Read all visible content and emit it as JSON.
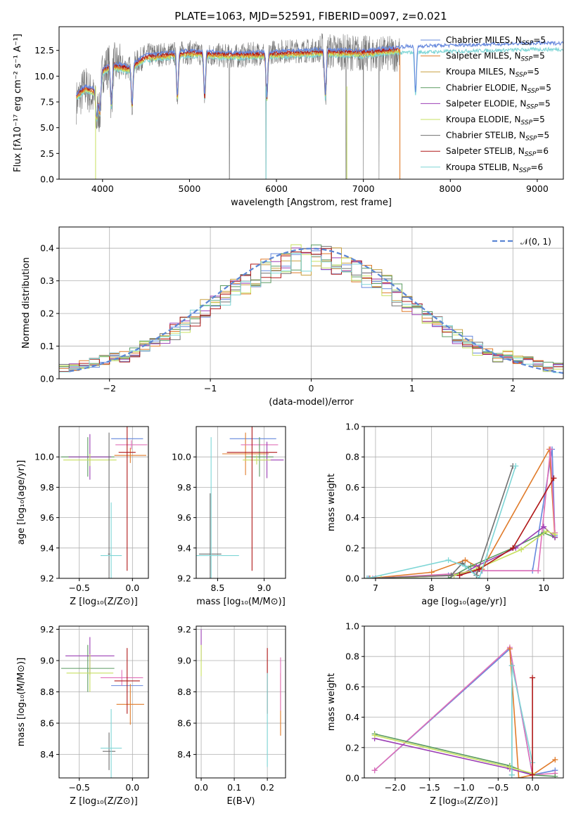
{
  "title": "PLATE=1063, MJD=52591, FIBERID=0097, z=0.021",
  "colors": [
    "#6688dd",
    "#e07b2a",
    "#c8a040",
    "#5a9a60",
    "#9b3fb5",
    "#c7e060",
    "#707070",
    "#b01818",
    "#7ed6d6",
    "#e070b8"
  ],
  "legend": [
    {
      "name": "Chabrier MILES, N",
      "sub": "SSP",
      "eq": "=5",
      "color": "#6688dd"
    },
    {
      "name": "Salpeter MILES, N",
      "sub": "SSP",
      "eq": "=5",
      "color": "#e07b2a"
    },
    {
      "name": "Kroupa MILES, N",
      "sub": "SSP",
      "eq": "=5",
      "color": "#c8a040"
    },
    {
      "name": "Chabrier ELODIE, N",
      "sub": "SSP",
      "eq": "=5",
      "color": "#5a9a60"
    },
    {
      "name": "Salpeter ELODIE, N",
      "sub": "SSP",
      "eq": "=5",
      "color": "#9b3fb5"
    },
    {
      "name": "Kroupa ELODIE, N",
      "sub": "SSP",
      "eq": "=5",
      "color": "#c7e060"
    },
    {
      "name": "Chabrier STELIB, N",
      "sub": "SSP",
      "eq": "=5",
      "color": "#707070"
    },
    {
      "name": "Salpeter STELIB, N",
      "sub": "SSP",
      "eq": "=6",
      "color": "#b01818"
    },
    {
      "name": "Kroupa STELIB, N",
      "sub": "SSP",
      "eq": "=6",
      "color": "#7ed6d6"
    }
  ],
  "chart_data": [
    {
      "id": "spectrum",
      "type": "line",
      "xlabel": "wavelength [Angstrom, rest frame]",
      "ylabel": "Flux [fλ10⁻¹⁷ erg cm⁻² s⁻¹ A⁻¹]",
      "xlim": [
        3500,
        9300
      ],
      "ylim": [
        0,
        14.8
      ],
      "xticks": [
        4000,
        5000,
        6000,
        7000,
        8000,
        9000
      ],
      "yticks": [
        0.0,
        2.5,
        5.0,
        7.5,
        10.0,
        12.5
      ],
      "ytick_labels": [
        "0.0",
        "2.5",
        "5.0",
        "7.5",
        "10.0",
        "12.5"
      ],
      "legend_position": "right",
      "observed_anchor_x": [
        3700,
        3800,
        3900,
        4000,
        4100,
        4300,
        4500,
        5000,
        5500,
        6000,
        6500,
        7000,
        7200,
        7400
      ],
      "observed_anchor_y": [
        7.5,
        9.0,
        7.8,
        10.5,
        11.2,
        10.8,
        12.0,
        12.3,
        11.9,
        12.4,
        12.5,
        12.2,
        12.1,
        12.2
      ],
      "model_anchor_x": [
        3700,
        3800,
        3900,
        4000,
        4100,
        4300,
        4500,
        5000,
        5500,
        6000,
        6500,
        7000,
        7500,
        8000,
        8500,
        9000
      ],
      "model_anchor_y": [
        8.0,
        8.8,
        8.5,
        10.5,
        11.0,
        10.7,
        11.8,
        12.2,
        12.0,
        12.1,
        12.3,
        12.2,
        12.6,
        12.7,
        12.8,
        12.9
      ],
      "absorption_lines": [
        3933,
        3968,
        4102,
        4340,
        4861,
        5175,
        5890,
        6563,
        7600
      ],
      "observed_dropouts": [
        5460,
        5880,
        6800,
        7000,
        7180
      ],
      "grid": false
    },
    {
      "id": "residuals",
      "type": "histogram",
      "xlabel": "(data-model)/error",
      "ylabel": "Normed distribution",
      "xlim": [
        -2.5,
        2.5
      ],
      "ylim": [
        0,
        0.465
      ],
      "xticks": [
        -2,
        -1,
        0,
        1,
        2
      ],
      "xtick_labels": [
        "−2",
        "−1",
        "0",
        "1",
        "2"
      ],
      "yticks": [
        0.0,
        0.1,
        0.2,
        0.3,
        0.4
      ],
      "ytick_labels": [
        "0.0",
        "0.1",
        "0.2",
        "0.3",
        "0.4"
      ],
      "bin_width": 0.1,
      "normal_legend": "𝒩(0, 1)",
      "legend_position": "top-right",
      "grid": true
    },
    {
      "id": "age-vs-Z",
      "type": "scatter-errorbar",
      "xlabel": "Z [log₁₀(Z/Z⊙)]",
      "ylabel": "age  [log₁₀(age/yr)]",
      "xlim": [
        -0.69,
        0.15
      ],
      "ylim": [
        9.2,
        10.2
      ],
      "xticks": [
        -0.5,
        0.0
      ],
      "xtick_labels": [
        "−0.5",
        "0.0"
      ],
      "yticks": [
        9.2,
        9.4,
        9.6,
        9.8,
        10.0
      ],
      "ytick_labels": [
        "9.2",
        "9.4",
        "9.6",
        "9.8",
        "10.0"
      ],
      "points": [
        {
          "x": -0.05,
          "y": 10.12,
          "xerr": 0.15,
          "yerr": 0.0,
          "c": 0
        },
        {
          "x": -0.02,
          "y": 10.01,
          "xerr": 0.15,
          "yerr": 0.05,
          "c": 1
        },
        {
          "x": -0.01,
          "y": 10.08,
          "xerr": 0.15,
          "yerr": 0.03,
          "c": 9
        },
        {
          "x": -0.42,
          "y": 10.0,
          "xerr": 0.25,
          "yerr": 0.13,
          "c": 3
        },
        {
          "x": -0.4,
          "y": 10.0,
          "xerr": 0.2,
          "yerr": 0.15,
          "c": 4
        },
        {
          "x": -0.4,
          "y": 9.98,
          "xerr": 0.25,
          "yerr": 0.04,
          "c": 5
        },
        {
          "x": -0.22,
          "y": 9.36,
          "xerr": 0.01,
          "yerr": 0.8,
          "c": 6
        },
        {
          "x": -0.05,
          "y": 10.03,
          "xerr": 0.08,
          "yerr": 0.78,
          "c": 7
        },
        {
          "x": -0.2,
          "y": 9.35,
          "xerr": 0.1,
          "yerr": 0.35,
          "c": 8
        }
      ],
      "grid": true
    },
    {
      "id": "age-vs-mass",
      "type": "scatter-errorbar",
      "xlabel": "mass [log₁₀(M/M⊙)]",
      "ylabel": "",
      "xlim": [
        8.27,
        9.23
      ],
      "ylim": [
        9.2,
        10.2
      ],
      "xticks": [
        8.5,
        9.0
      ],
      "xtick_labels": [
        "8.5",
        "9.0"
      ],
      "yticks": [
        9.2,
        9.4,
        9.6,
        9.8,
        10.0
      ],
      "ytick_labels": [
        "9.2",
        "9.4",
        "9.6",
        "9.8",
        "10.0"
      ],
      "points": [
        {
          "x": 8.88,
          "y": 10.12,
          "xerr": 0.25,
          "yerr": 0.0,
          "c": 0
        },
        {
          "x": 8.8,
          "y": 10.02,
          "xerr": 0.25,
          "yerr": 0.14,
          "c": 1
        },
        {
          "x": 8.95,
          "y": 10.08,
          "xerr": 0.2,
          "yerr": 0.03,
          "c": 9
        },
        {
          "x": 8.95,
          "y": 10.0,
          "xerr": 0.15,
          "yerr": 0.13,
          "c": 3
        },
        {
          "x": 9.03,
          "y": 9.98,
          "xerr": 0.18,
          "yerr": 0.12,
          "c": 4
        },
        {
          "x": 8.92,
          "y": 9.98,
          "xerr": 0.15,
          "yerr": 0.03,
          "c": 5
        },
        {
          "x": 8.42,
          "y": 9.36,
          "xerr": 0.12,
          "yerr": 0.4,
          "c": 6
        },
        {
          "x": 8.87,
          "y": 10.03,
          "xerr": 0.27,
          "yerr": 0.78,
          "c": 7
        },
        {
          "x": 8.43,
          "y": 9.35,
          "xerr": 0.3,
          "yerr": 0.78,
          "c": 8
        }
      ],
      "grid": true
    },
    {
      "id": "massweight-vs-age",
      "type": "line",
      "xlabel": "age  [log₁₀(age/yr)]",
      "ylabel": "mass weight",
      "xlim": [
        6.8,
        10.35
      ],
      "ylim": [
        0,
        1.0
      ],
      "xticks": [
        7,
        8,
        9,
        10
      ],
      "xtick_labels": [
        "7",
        "8",
        "9",
        "10"
      ],
      "yticks": [
        0.0,
        0.2,
        0.4,
        0.6,
        0.8,
        1.0
      ],
      "ytick_labels": [
        "0.0",
        "0.2",
        "0.4",
        "0.6",
        "0.8",
        "1.0"
      ],
      "series": [
        {
          "c": 0,
          "x": [
            6.88,
            8.3,
            8.9,
            9.8,
            10.15,
            10.2
          ],
          "y": [
            0.0,
            0.02,
            0.05,
            0.05,
            0.85,
            0.28
          ]
        },
        {
          "c": 1,
          "x": [
            6.9,
            8.0,
            8.6,
            8.9,
            10.1,
            10.2
          ],
          "y": [
            0.0,
            0.04,
            0.12,
            0.06,
            0.85,
            0.27
          ]
        },
        {
          "c": 9,
          "x": [
            6.95,
            8.4,
            8.8,
            9.9,
            10.12,
            10.2
          ],
          "y": [
            0.0,
            0.03,
            0.05,
            0.05,
            0.85,
            0.3
          ]
        },
        {
          "c": 3,
          "x": [
            7.0,
            8.3,
            8.7,
            9.45,
            10.0,
            10.2
          ],
          "y": [
            0.0,
            0.0,
            0.08,
            0.2,
            0.3,
            0.27
          ]
        },
        {
          "c": 4,
          "x": [
            7.0,
            8.5,
            8.8,
            9.5,
            10.0,
            10.2
          ],
          "y": [
            0.0,
            0.02,
            0.08,
            0.2,
            0.34,
            0.27
          ]
        },
        {
          "c": 5,
          "x": [
            7.1,
            8.4,
            8.8,
            9.6,
            10.05,
            10.2
          ],
          "y": [
            0.0,
            0.02,
            0.06,
            0.19,
            0.31,
            0.29
          ]
        },
        {
          "c": 6,
          "x": [
            6.85,
            8.35,
            8.55,
            8.8,
            9.45
          ],
          "y": [
            0.0,
            0.02,
            0.1,
            0.02,
            0.74
          ]
        },
        {
          "c": 7,
          "x": [
            8.5,
            8.85,
            9.45,
            10.18
          ],
          "y": [
            0.02,
            0.06,
            0.2,
            0.66
          ]
        },
        {
          "c": 8,
          "x": [
            6.85,
            8.3,
            8.6,
            8.85,
            9.5
          ],
          "y": [
            0.0,
            0.12,
            0.08,
            0.0,
            0.74
          ]
        }
      ],
      "grid": true
    },
    {
      "id": "mass-vs-Z",
      "type": "scatter-errorbar",
      "xlabel": "Z [log₁₀(Z/Z⊙)]",
      "ylabel": "mass [log₁₀(M/M⊙)]",
      "xlim": [
        -0.69,
        0.15
      ],
      "ylim": [
        8.25,
        9.22
      ],
      "xticks": [
        -0.5,
        0.0
      ],
      "xtick_labels": [
        "−0.5",
        "0.0"
      ],
      "yticks": [
        8.4,
        8.6,
        8.8,
        9.0,
        9.2
      ],
      "ytick_labels": [
        "8.4",
        "8.6",
        "8.8",
        "9.0",
        "9.2"
      ],
      "points": [
        {
          "x": -0.05,
          "y": 8.84,
          "xerr": 0.15,
          "yerr": 0.0,
          "c": 0
        },
        {
          "x": -0.02,
          "y": 8.72,
          "xerr": 0.13,
          "yerr": 0.13,
          "c": 1
        },
        {
          "x": -0.1,
          "y": 8.89,
          "xerr": 0.2,
          "yerr": 0.05,
          "c": 9
        },
        {
          "x": -0.42,
          "y": 8.95,
          "xerr": 0.25,
          "yerr": 0.15,
          "c": 3
        },
        {
          "x": -0.4,
          "y": 9.03,
          "xerr": 0.23,
          "yerr": 0.12,
          "c": 4
        },
        {
          "x": -0.4,
          "y": 8.92,
          "xerr": 0.22,
          "yerr": 0.12,
          "c": 5
        },
        {
          "x": -0.22,
          "y": 8.42,
          "xerr": 0.06,
          "yerr": 0.12,
          "c": 6
        },
        {
          "x": -0.05,
          "y": 8.87,
          "xerr": 0.12,
          "yerr": 0.21,
          "c": 7
        },
        {
          "x": -0.2,
          "y": 8.44,
          "xerr": 0.1,
          "yerr": 0.25,
          "c": 8
        }
      ],
      "grid": true
    },
    {
      "id": "mass-vs-EBV",
      "type": "scatter-errorbar",
      "xlabel": "E(B-V)",
      "ylabel": "",
      "xlim": [
        -0.015,
        0.255
      ],
      "ylim": [
        8.25,
        9.22
      ],
      "xticks": [
        0.0,
        0.1,
        0.2
      ],
      "xtick_labels": [
        "0.0",
        "0.1",
        "0.2"
      ],
      "yticks": [
        8.4,
        8.6,
        8.8,
        9.0,
        9.2
      ],
      "ytick_labels": [
        "8.4",
        "8.6",
        "8.8",
        "9.0",
        "9.2"
      ],
      "points": [
        {
          "x": 0.0,
          "y": 9.1,
          "xerr": 0,
          "yerr": 0.1,
          "c": 4
        },
        {
          "x": 0.0,
          "y": 9.0,
          "xerr": 0,
          "yerr": 0.1,
          "c": 5
        },
        {
          "x": 0.2,
          "y": 8.87,
          "xerr": 0,
          "yerr": 0.21,
          "c": 7
        },
        {
          "x": 0.2,
          "y": 8.62,
          "xerr": 0,
          "yerr": 0.3,
          "c": 8
        },
        {
          "x": 0.24,
          "y": 8.72,
          "xerr": 0,
          "yerr": 0.2,
          "c": 1
        },
        {
          "x": 0.24,
          "y": 8.85,
          "xerr": 0,
          "yerr": 0.17,
          "c": 9
        }
      ],
      "grid": true
    },
    {
      "id": "massweight-vs-Z",
      "type": "line",
      "xlabel": "Z [log₁₀(Z/Z⊙)]",
      "ylabel": "mass weight",
      "xlim": [
        -2.45,
        0.45
      ],
      "ylim": [
        0,
        1.0
      ],
      "xticks": [
        -2.0,
        -1.5,
        -1.0,
        -0.5,
        0.0
      ],
      "xtick_labels": [
        "−2.0",
        "−1.5",
        "−1.0",
        "−0.5",
        "0.0"
      ],
      "yticks": [
        0.0,
        0.2,
        0.4,
        0.6,
        0.8,
        1.0
      ],
      "ytick_labels": [
        "0.0",
        "0.2",
        "0.4",
        "0.6",
        "0.8",
        "1.0"
      ],
      "series": [
        {
          "c": 0,
          "x": [
            -2.3,
            -0.33,
            0.0,
            0.33
          ],
          "y": [
            0.05,
            0.85,
            0.02,
            0.05
          ]
        },
        {
          "c": 9,
          "x": [
            -2.3,
            -0.33,
            0.0,
            0.33
          ],
          "y": [
            0.05,
            0.86,
            0.02,
            0.03
          ]
        },
        {
          "c": 1,
          "x": [
            -0.33,
            -0.2,
            0.0,
            0.33
          ],
          "y": [
            0.85,
            0.0,
            0.02,
            0.12
          ]
        },
        {
          "c": 3,
          "x": [
            -2.3,
            -0.33,
            0.0,
            0.33
          ],
          "y": [
            0.29,
            0.08,
            0.02,
            0.01
          ]
        },
        {
          "c": 4,
          "x": [
            -2.3,
            -0.33,
            0.0
          ],
          "y": [
            0.26,
            0.06,
            0.02
          ]
        },
        {
          "c": 5,
          "x": [
            -2.3,
            -0.33,
            0.0
          ],
          "y": [
            0.28,
            0.07,
            0.03
          ]
        },
        {
          "c": 6,
          "x": [
            -0.3,
            -0.3
          ],
          "y": [
            0.02,
            0.74
          ]
        },
        {
          "c": 8,
          "x": [
            -0.3,
            -0.3,
            0.0
          ],
          "y": [
            0.02,
            0.74,
            0.1
          ]
        },
        {
          "c": 7,
          "x": [
            0.0,
            0.0
          ],
          "y": [
            0.02,
            0.66
          ]
        }
      ],
      "grid": true
    }
  ]
}
